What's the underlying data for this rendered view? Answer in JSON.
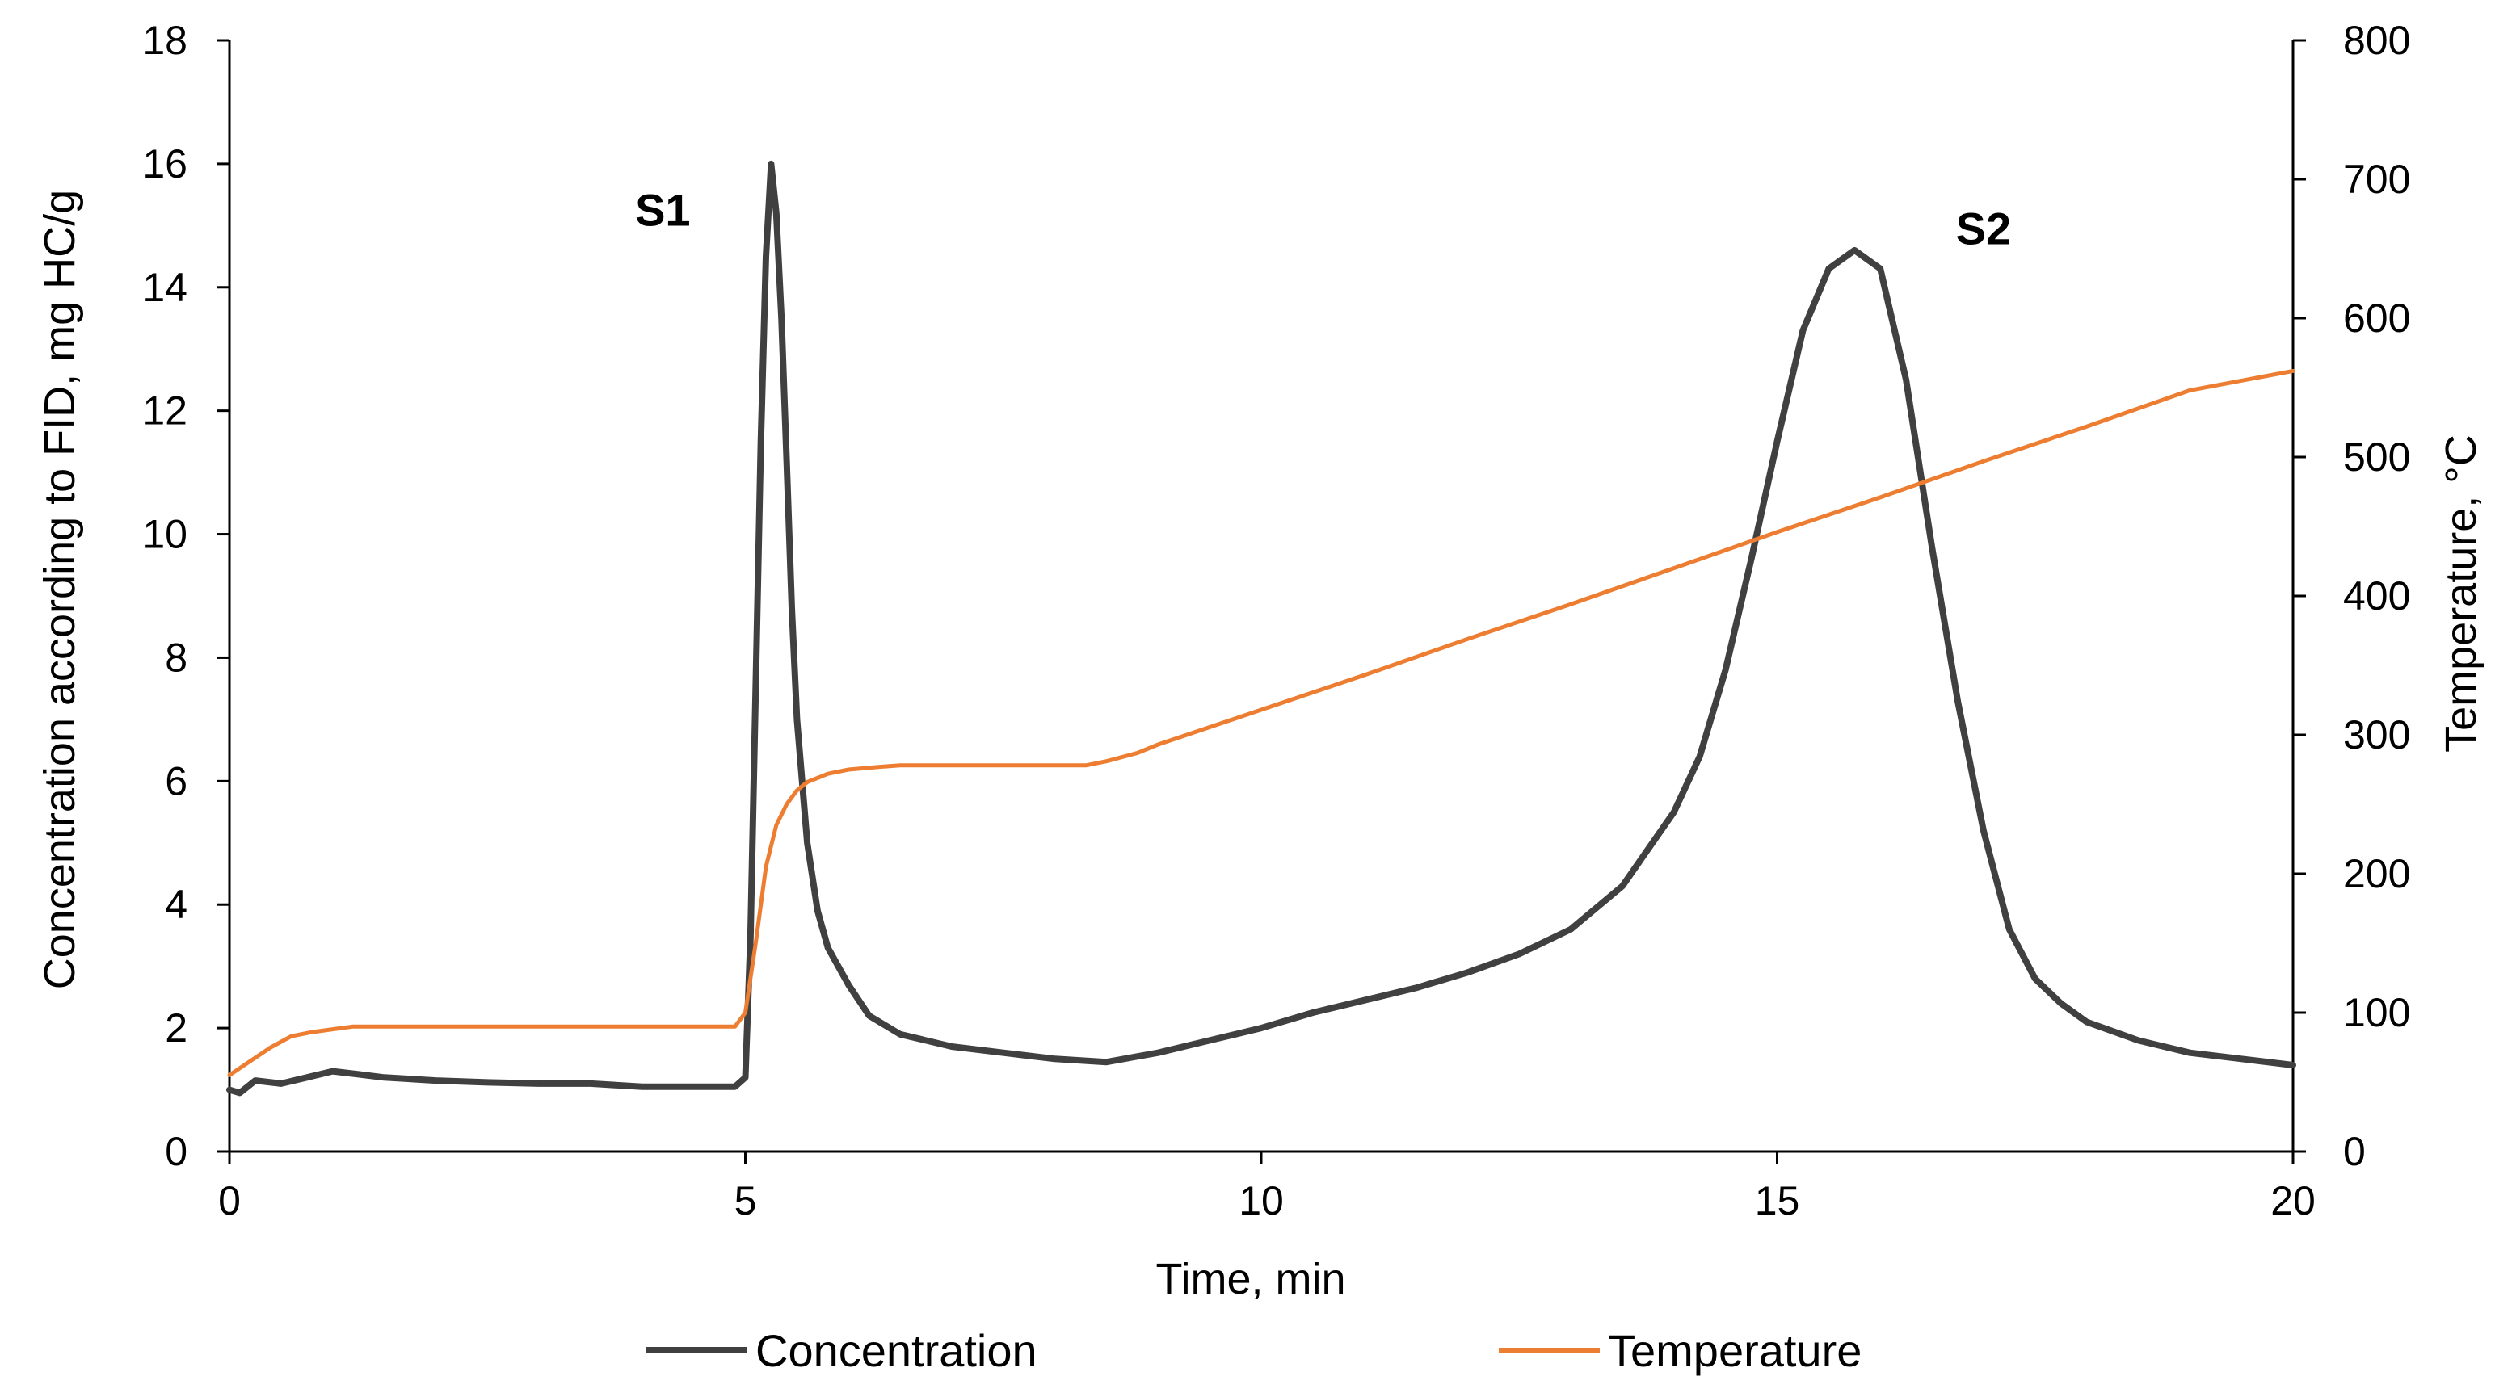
{
  "chart_data": {
    "type": "line",
    "title": "",
    "xlabel": "Time, min",
    "ylabel": "Concentration according to FID, mg HC/g",
    "y2label": "Temperature, °C",
    "xlim": [
      0,
      20
    ],
    "ylim": [
      0,
      18
    ],
    "y2lim": [
      0,
      800
    ],
    "x_ticks": [
      0,
      5,
      10,
      15,
      20
    ],
    "y_ticks": [
      0,
      2,
      4,
      6,
      8,
      10,
      12,
      14,
      16,
      18
    ],
    "y2_ticks": [
      0,
      100,
      200,
      300,
      400,
      500,
      600,
      700,
      800
    ],
    "grid": false,
    "legend_position": "bottom",
    "series": [
      {
        "name": "Concentration",
        "axis": "left",
        "color": "#404040",
        "x": [
          0,
          0.1,
          0.25,
          0.5,
          0.75,
          1.0,
          1.25,
          1.5,
          2.0,
          2.5,
          3.0,
          3.5,
          4.0,
          4.5,
          4.9,
          5.0,
          5.05,
          5.1,
          5.15,
          5.2,
          5.25,
          5.3,
          5.35,
          5.4,
          5.45,
          5.5,
          5.6,
          5.7,
          5.8,
          6.0,
          6.2,
          6.5,
          7.0,
          7.5,
          8.0,
          8.5,
          9.0,
          9.5,
          10.0,
          10.5,
          11.0,
          11.5,
          12.0,
          12.5,
          13.0,
          13.5,
          14.0,
          14.25,
          14.5,
          14.75,
          15.0,
          15.25,
          15.5,
          15.75,
          16.0,
          16.25,
          16.5,
          16.75,
          17.0,
          17.25,
          17.5,
          17.75,
          18.0,
          18.5,
          19.0,
          19.5,
          20.0
        ],
        "values": [
          1.0,
          0.95,
          1.15,
          1.1,
          1.2,
          1.3,
          1.25,
          1.2,
          1.15,
          1.12,
          1.1,
          1.1,
          1.05,
          1.05,
          1.05,
          1.2,
          3.5,
          7.5,
          11.5,
          14.5,
          16.0,
          15.2,
          13.5,
          11.2,
          8.8,
          7.0,
          5.0,
          3.9,
          3.3,
          2.7,
          2.2,
          1.9,
          1.7,
          1.6,
          1.5,
          1.45,
          1.6,
          1.8,
          2.0,
          2.25,
          2.45,
          2.65,
          2.9,
          3.2,
          3.6,
          4.3,
          5.5,
          6.4,
          7.8,
          9.6,
          11.5,
          13.3,
          14.3,
          14.6,
          14.3,
          12.5,
          9.8,
          7.3,
          5.2,
          3.6,
          2.8,
          2.4,
          2.1,
          1.8,
          1.6,
          1.5,
          1.4
        ]
      },
      {
        "name": "Temperature",
        "axis": "right",
        "color": "#ED7D31",
        "x": [
          0,
          0.2,
          0.4,
          0.6,
          0.8,
          1.0,
          1.2,
          2.0,
          3.0,
          4.0,
          4.9,
          5.0,
          5.1,
          5.2,
          5.3,
          5.4,
          5.5,
          5.6,
          5.8,
          6.0,
          6.3,
          6.5,
          7.0,
          8.0,
          8.3,
          8.5,
          8.8,
          9.0,
          10.0,
          11.0,
          12.0,
          13.0,
          14.0,
          15.0,
          16.0,
          17.0,
          18.0,
          19.0,
          20.0
        ],
        "values": [
          55,
          65,
          75,
          83,
          86,
          88,
          90,
          90,
          90,
          90,
          90,
          100,
          150,
          205,
          235,
          250,
          260,
          266,
          272,
          275,
          277,
          278,
          278,
          278,
          278,
          281,
          287,
          293,
          318,
          343,
          369,
          394,
          420,
          446,
          471,
          497,
          522,
          548,
          562
        ]
      }
    ],
    "annotations": [
      {
        "text": "S1",
        "x": 4.2,
        "y": 15.0
      },
      {
        "text": "S2",
        "x": 17.0,
        "y": 14.7
      }
    ]
  }
}
